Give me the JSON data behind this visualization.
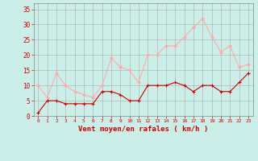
{
  "x": [
    0,
    1,
    2,
    3,
    4,
    5,
    6,
    7,
    8,
    9,
    10,
    11,
    12,
    13,
    14,
    15,
    16,
    17,
    18,
    19,
    20,
    21,
    22,
    23
  ],
  "wind_avg": [
    1,
    5,
    5,
    4,
    4,
    4,
    4,
    8,
    8,
    7,
    5,
    5,
    10,
    10,
    10,
    11,
    10,
    8,
    10,
    10,
    8,
    8,
    11,
    14
  ],
  "wind_gust": [
    10,
    6,
    14,
    10,
    8,
    7,
    6,
    10,
    19,
    16,
    15,
    11,
    20,
    20,
    23,
    23,
    26,
    29,
    32,
    26,
    21,
    23,
    16,
    17
  ],
  "wind_avg_color": "#cc0000",
  "wind_gust_color": "#ffaaaa",
  "background_color": "#cceee8",
  "grid_color": "#aaaaaa",
  "xlabel": "Vent moyen/en rafales ( km/h )",
  "ylabel_ticks": [
    0,
    5,
    10,
    15,
    20,
    25,
    30,
    35
  ],
  "ylim": [
    0,
    37
  ],
  "xlim": [
    -0.5,
    23.5
  ],
  "xlabel_color": "#cc0000",
  "tick_color": "#cc0000",
  "axis_color": "#888888"
}
